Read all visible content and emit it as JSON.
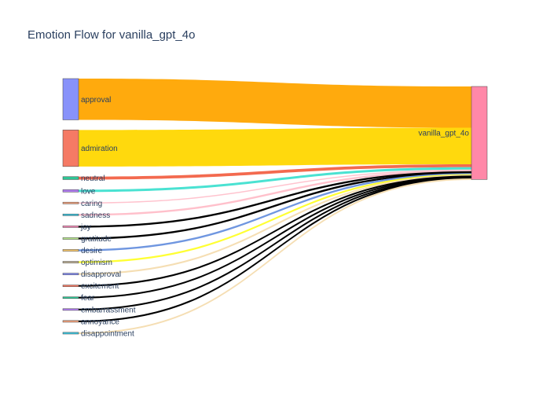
{
  "chart_data": {
    "type": "sankey",
    "title": "Emotion Flow for vanilla_gpt_4o",
    "target": {
      "label": "vanilla_gpt_4o",
      "color": "#ff88a8"
    },
    "sources": [
      {
        "label": "approval",
        "value": 0.35,
        "node_color": "#8892fa",
        "link_color": "#ffa500"
      },
      {
        "label": "admiration",
        "value": 0.31,
        "node_color": "#f57a65",
        "link_color": "#ffd700"
      },
      {
        "label": "neutral",
        "value": 0.025,
        "node_color": "#2fc494",
        "link_color": "#f26246"
      },
      {
        "label": "love",
        "value": 0.02,
        "node_color": "#b07cf0",
        "link_color": "#40e0d0"
      },
      {
        "label": "caring",
        "value": 0.01,
        "node_color": "#f2a07a",
        "link_color": "#ffc0cb"
      },
      {
        "label": "sadness",
        "value": 0.008,
        "node_color": "#3dc6e0",
        "link_color": "#ffc0cb"
      },
      {
        "label": "joy",
        "value": 0.008,
        "node_color": "#f48ab8",
        "link_color": "#000000"
      },
      {
        "label": "gratitude",
        "value": 0.008,
        "node_color": "#b8e68e",
        "link_color": "#000000"
      },
      {
        "label": "desire",
        "value": 0.008,
        "node_color": "#f9c96e",
        "link_color": "#6f96e0"
      },
      {
        "label": "optimism",
        "value": 0.007,
        "node_color": "#c2b59a",
        "link_color": "#ffff33"
      },
      {
        "label": "disapproval",
        "value": 0.006,
        "node_color": "#8892fa",
        "link_color": "#f5deb3"
      },
      {
        "label": "excitement",
        "value": 0.006,
        "node_color": "#f57a65",
        "link_color": "#000000"
      },
      {
        "label": "fear",
        "value": 0.006,
        "node_color": "#2fc494",
        "link_color": "#000000"
      },
      {
        "label": "embarrassment",
        "value": 0.006,
        "node_color": "#b07cf0",
        "link_color": "#000000"
      },
      {
        "label": "annoyance",
        "value": 0.006,
        "node_color": "#f2a07a",
        "link_color": "#000000"
      },
      {
        "label": "disappointment",
        "value": 0.005,
        "node_color": "#3dc6e0",
        "link_color": "#f5deb3"
      }
    ]
  }
}
